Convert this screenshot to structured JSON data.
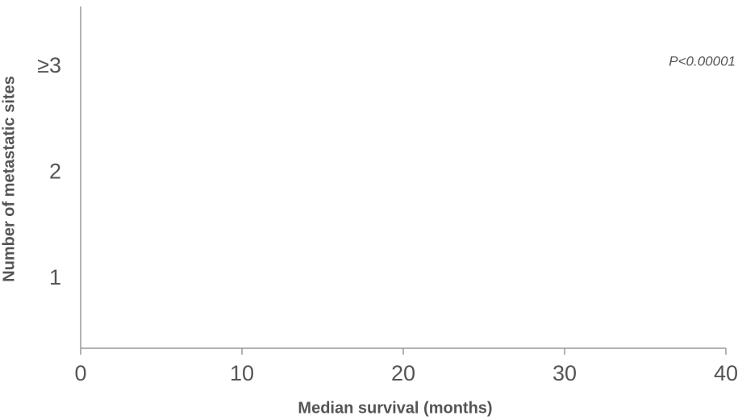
{
  "chart_data": {
    "type": "bar",
    "orientation": "horizontal",
    "categories": [
      "1",
      "2",
      "≥3"
    ],
    "xlim": [
      0,
      40
    ],
    "xticks": [
      0,
      10,
      20,
      30,
      40
    ],
    "xlabel": "Median survival (months)",
    "ylabel": "Number of metastatic sites",
    "annotation": "P<0.00001"
  }
}
